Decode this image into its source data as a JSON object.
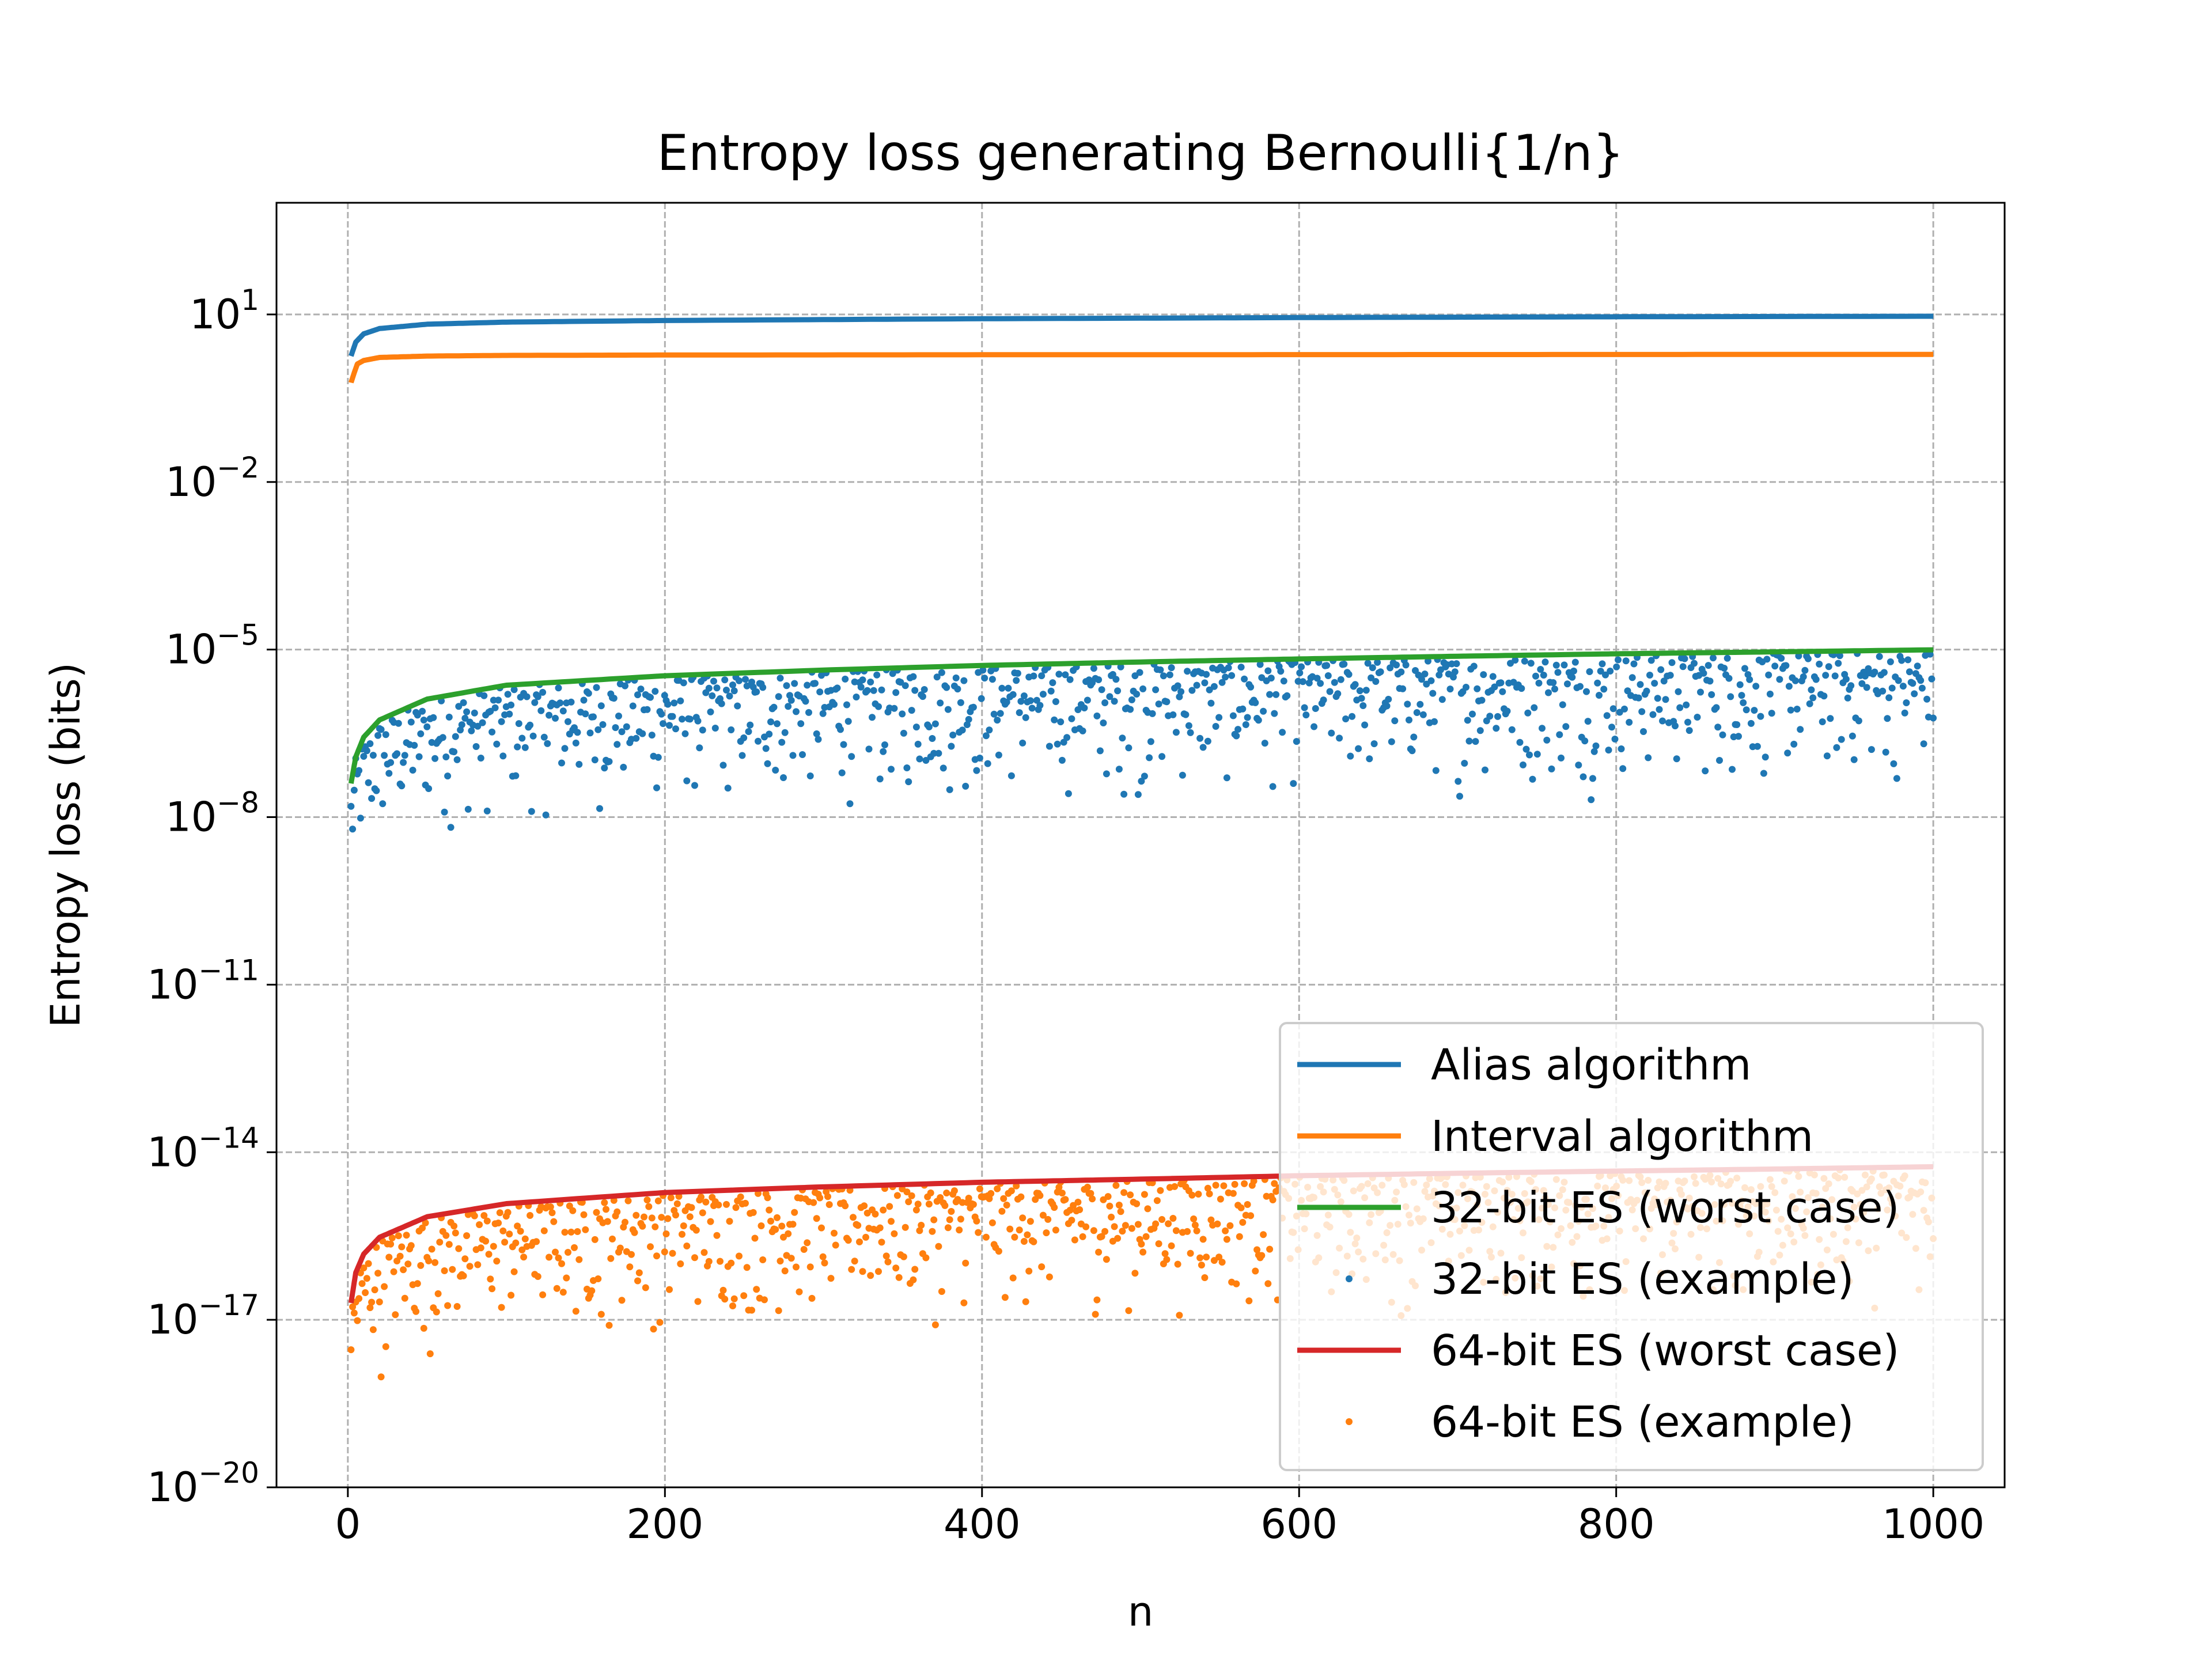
{
  "chart_data": {
    "type": "line",
    "title": "Entropy loss generating Bernoulli{1/n}",
    "xlabel": "n",
    "ylabel": "Entropy loss (bits)",
    "xlim": [
      -45,
      1045
    ],
    "ylim": [
      1e-20,
      1000
    ],
    "yscale": "log",
    "grid": true,
    "legend_position": "lower-right",
    "x_ticks": [
      "0",
      "200",
      "400",
      "600",
      "800",
      "1000"
    ],
    "y_ticks": [
      {
        "base": "10",
        "exp": "1",
        "value": 10
      },
      {
        "base": "10",
        "exp": "−2",
        "value": 0.01
      },
      {
        "base": "10",
        "exp": "−5",
        "value": 1e-05
      },
      {
        "base": "10",
        "exp": "−8",
        "value": 1e-08
      },
      {
        "base": "10",
        "exp": "−11",
        "value": 1e-11
      },
      {
        "base": "10",
        "exp": "−14",
        "value": 1e-14
      },
      {
        "base": "10",
        "exp": "−17",
        "value": 1e-17
      },
      {
        "base": "10",
        "exp": "−20",
        "value": 1e-20
      }
    ],
    "series": [
      {
        "name": "Alias algorithm",
        "kind": "line",
        "color": "#1f77b4",
        "x": [
          2,
          5,
          10,
          20,
          50,
          100,
          200,
          400,
          600,
          800,
          1000
        ],
        "y": [
          1.8,
          3.2,
          4.5,
          5.6,
          6.7,
          7.3,
          7.8,
          8.4,
          8.8,
          9.1,
          9.3
        ]
      },
      {
        "name": "Interval algorithm",
        "kind": "line",
        "color": "#ff7f0e",
        "x": [
          2,
          4,
          6,
          10,
          20,
          50,
          100,
          200,
          400,
          600,
          800,
          1000
        ],
        "y": [
          0.6,
          0.9,
          1.3,
          1.5,
          1.7,
          1.8,
          1.85,
          1.88,
          1.9,
          1.91,
          1.92,
          1.93
        ]
      },
      {
        "name": "32-bit ES (worst case)",
        "kind": "line",
        "color": "#2ca02c",
        "x": [
          2,
          5,
          10,
          20,
          50,
          100,
          200,
          300,
          400,
          500,
          600,
          700,
          800,
          900,
          1000
        ],
        "y": [
          4e-08,
          1.2e-07,
          2.7e-07,
          5.5e-07,
          1.3e-06,
          2.3e-06,
          3.4e-06,
          4.3e-06,
          5.2e-06,
          6e-06,
          6.8e-06,
          7.6e-06,
          8.4e-06,
          9.1e-06,
          9.9e-06
        ]
      },
      {
        "name": "32-bit ES (example)",
        "kind": "scatter",
        "color": "#1f77b4",
        "x_range": [
          2,
          1000
        ],
        "count": 1000,
        "ratio_range": [
          0.0015,
          0.95
        ]
      },
      {
        "name": "64-bit ES (worst case)",
        "kind": "line",
        "color": "#d62728",
        "x": [
          2,
          5,
          10,
          20,
          50,
          100,
          200,
          300,
          400,
          500,
          600,
          700,
          800,
          900,
          1000
        ],
        "y": [
          2e-17,
          7e-17,
          1.5e-16,
          3e-16,
          7e-16,
          1.2e-15,
          1.9e-15,
          2.4e-15,
          2.9e-15,
          3.3e-15,
          3.8e-15,
          4.2e-15,
          4.6e-15,
          5e-15,
          5.5e-15
        ]
      },
      {
        "name": "64-bit ES (example)",
        "kind": "scatter",
        "color": "#ff7f0e",
        "x_range": [
          2,
          1000
        ],
        "count": 1000,
        "ratio_range": [
          0.0015,
          0.95
        ]
      }
    ]
  }
}
